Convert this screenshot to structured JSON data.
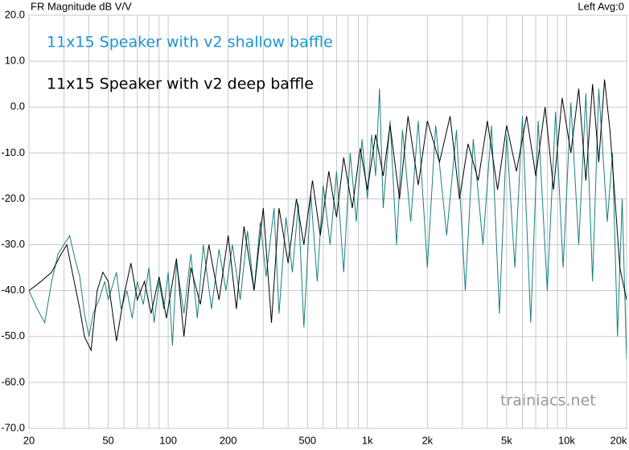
{
  "chart_data": {
    "type": "line",
    "title": "FR Magnitude dB V/V",
    "subtitle": "Left  Avg:0",
    "annotations": [
      {
        "text": "11x15 Speaker with v2 shallow baffle",
        "color": "#1b95d0"
      },
      {
        "text": "11x15 Speaker with v2 deep baffle",
        "color": "#000000"
      },
      {
        "text": "trainiacs.net",
        "color": "#999999"
      }
    ],
    "log_x": true,
    "grid": true,
    "xlim": [
      20,
      20000
    ],
    "ylim": [
      -70,
      20
    ],
    "xticks": [
      20,
      50,
      100,
      200,
      500,
      {
        "value": 1000,
        "label": "1k"
      },
      {
        "value": 2000,
        "label": "2k"
      },
      {
        "value": 5000,
        "label": "5k"
      },
      {
        "value": 10000,
        "label": "10k"
      },
      {
        "value": 20000,
        "label": "20k"
      }
    ],
    "xminor": [
      30,
      40,
      60,
      70,
      80,
      90,
      300,
      400,
      600,
      700,
      800,
      900,
      3000,
      4000,
      6000,
      7000,
      8000,
      9000
    ],
    "yticks": [
      {
        "value": 20,
        "label": "20.0"
      },
      {
        "value": 10,
        "label": "10.0"
      },
      {
        "value": 0,
        "label": "0.0"
      },
      {
        "value": -10,
        "label": "-10.0"
      },
      {
        "value": -20,
        "label": "-20.0"
      },
      {
        "value": -30,
        "label": "-30.0"
      },
      {
        "value": -40,
        "label": "-40.0"
      },
      {
        "value": -50,
        "label": "-50.0"
      },
      {
        "value": -60,
        "label": "-60.0"
      },
      {
        "value": -70,
        "label": "-70.0"
      }
    ],
    "series": [
      {
        "name": "11x15 Speaker with v2 shallow baffle",
        "color": "#1a7f80",
        "x": [
          20,
          22,
          24,
          26,
          28,
          32,
          34,
          36,
          38,
          40,
          42,
          45,
          48,
          50,
          55,
          58,
          62,
          66,
          70,
          75,
          80,
          85,
          90,
          95,
          100,
          105,
          110,
          120,
          130,
          140,
          150,
          165,
          180,
          195,
          210,
          230,
          250,
          270,
          290,
          310,
          340,
          360,
          390,
          420,
          450,
          480,
          520,
          560,
          600,
          650,
          700,
          760,
          820,
          880,
          940,
          1000,
          1050,
          1100,
          1150,
          1200,
          1300,
          1400,
          1500,
          1650,
          1800,
          2000,
          2200,
          2500,
          2800,
          3100,
          3400,
          3800,
          4200,
          4600,
          5000,
          5500,
          6000,
          6600,
          7200,
          8000,
          8800,
          9600,
          10500,
          11500,
          12500,
          13500,
          14500,
          16000,
          17000,
          18000,
          19000,
          20000
        ],
        "values": [
          -40,
          -44,
          -47,
          -38,
          -32,
          -28,
          -33,
          -37,
          -45,
          -50,
          -45,
          -42,
          -38,
          -42,
          -36,
          -44,
          -40,
          -46,
          -38,
          -43,
          -35,
          -47,
          -38,
          -44,
          -36,
          -52,
          -34,
          -45,
          -32,
          -46,
          -30,
          -44,
          -31,
          -40,
          -30,
          -42,
          -27,
          -40,
          -25,
          -37,
          -22,
          -45,
          -24,
          -36,
          -21,
          -48,
          -19,
          -38,
          -17,
          -30,
          -14,
          -36,
          -10,
          -25,
          -7,
          -20,
          -6,
          -15,
          4,
          -22,
          -3,
          -30,
          -5,
          -25,
          -3,
          -35,
          -4,
          -28,
          -5,
          -40,
          -7,
          -30,
          -4,
          -45,
          -6,
          -35,
          -2,
          -47,
          -3,
          -40,
          -1,
          -35,
          1,
          -30,
          3,
          -38,
          4,
          -25,
          -10,
          -50,
          -20,
          -55
        ]
      },
      {
        "name": "11x15 Speaker with v2 deep baffle",
        "color": "#000000",
        "x": [
          20,
          23,
          26,
          29,
          31,
          33,
          36,
          38,
          41,
          44,
          47,
          50,
          55,
          60,
          65,
          70,
          76,
          82,
          90,
          98,
          110,
          120,
          130,
          145,
          160,
          180,
          200,
          220,
          240,
          270,
          300,
          330,
          360,
          400,
          440,
          480,
          530,
          580,
          640,
          700,
          760,
          840,
          920,
          1000,
          1100,
          1200,
          1300,
          1450,
          1600,
          1800,
          2000,
          2300,
          2600,
          2900,
          3200,
          3600,
          4000,
          4500,
          5000,
          5600,
          6300,
          7000,
          7800,
          8600,
          9500,
          10500,
          11500,
          12500,
          13500,
          14500,
          15500,
          16500,
          17500,
          18500,
          20000
        ],
        "values": [
          -40,
          -38,
          -36,
          -32,
          -30,
          -36,
          -44,
          -50,
          -53,
          -40,
          -36,
          -38,
          -51,
          -41,
          -34,
          -42,
          -38,
          -45,
          -37,
          -46,
          -33,
          -50,
          -35,
          -43,
          -30,
          -42,
          -28,
          -44,
          -26,
          -40,
          -22,
          -47,
          -22,
          -34,
          -20,
          -30,
          -16,
          -28,
          -14,
          -24,
          -11,
          -22,
          -9,
          -18,
          -6,
          -15,
          -4,
          -20,
          -2,
          -17,
          -3,
          -12,
          -2,
          -20,
          -8,
          -16,
          -3,
          -18,
          -4,
          -14,
          -2,
          -15,
          0,
          -18,
          2,
          -10,
          4,
          -16,
          5,
          -12,
          6,
          -5,
          -20,
          -35,
          -42
        ]
      }
    ]
  }
}
